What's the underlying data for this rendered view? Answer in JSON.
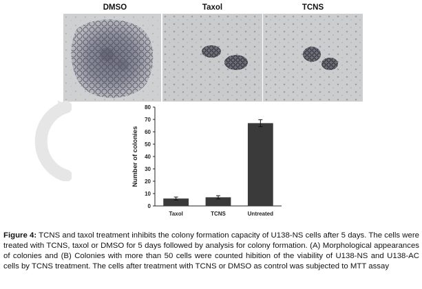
{
  "figure": {
    "panels": [
      {
        "label": "DMSO"
      },
      {
        "label": "Taxol"
      },
      {
        "label": "TCNS"
      }
    ]
  },
  "chart_data": {
    "type": "bar",
    "categories": [
      "Taxol",
      "TCNS",
      "Untreated"
    ],
    "values": [
      6,
      7,
      67
    ],
    "errors": [
      1.2,
      1.3,
      2.8
    ],
    "ylabel": "Number of colonies",
    "xlabel": "",
    "ylim": [
      0,
      80
    ],
    "yticks": [
      0,
      10,
      20,
      30,
      40,
      50,
      60,
      70,
      80
    ],
    "bar_color": "#3a3a3a",
    "grid": false
  },
  "caption": {
    "label": "Figure 4:",
    "text": " TCNS and taxol treatment inhibits the colony formation capacity of U138-NS cells after 5 days. The cells were treated with TCNS, taxol or DMSO for 5 days followed by analysis for colony formation. (A) Morphological appearances of colonies and (B) Colonies with more than 50 cells were counted hibition of the viability of U138-NS and U138-AC cells by TCNS treatment. The cells after treatment with TCNS or DMSO as control was subjected to MTT assay"
  }
}
